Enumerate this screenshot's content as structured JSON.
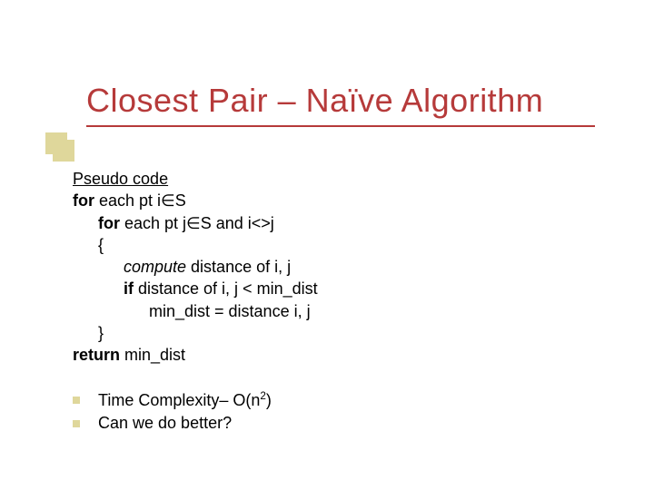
{
  "colors": {
    "title": "#b63a3a",
    "accent": "#dfd79b",
    "text": "#000000",
    "background": "#ffffff"
  },
  "title": "Closest Pair – Naïve Algorithm",
  "pseudo": {
    "heading": "Pseudo code",
    "for1_kw": "for",
    "for1_rest": " each pt i∈S",
    "for2_kw": "for",
    "for2_rest": " each pt j∈S and i<>j",
    "brace_open": "{",
    "compute_kw": "compute",
    "compute_rest": " distance of i, j",
    "if_kw": "if",
    "if_rest": " distance of i, j < min_dist",
    "assign": "min_dist = distance i, j",
    "brace_close": "}",
    "return_kw": "return",
    "return_rest": " min_dist"
  },
  "bullets": {
    "b1_pre": "Time Complexity– O(n",
    "b1_sup": "2",
    "b1_post": ")",
    "b2": "Can we do better?"
  }
}
